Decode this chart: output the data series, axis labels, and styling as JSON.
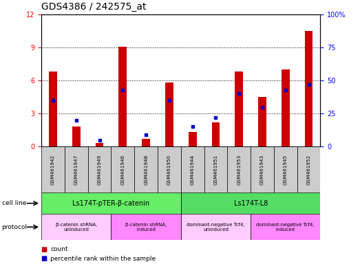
{
  "title": "GDS4386 / 242575_at",
  "samples": [
    "GSM461942",
    "GSM461947",
    "GSM461949",
    "GSM461946",
    "GSM461948",
    "GSM461950",
    "GSM461944",
    "GSM461951",
    "GSM461953",
    "GSM461943",
    "GSM461945",
    "GSM461952"
  ],
  "counts": [
    6.8,
    1.8,
    0.3,
    9.1,
    0.7,
    5.8,
    1.3,
    2.2,
    6.8,
    4.5,
    7.0,
    10.5
  ],
  "percentiles": [
    35,
    20,
    5,
    43,
    9,
    35,
    15,
    22,
    40,
    30,
    43,
    47
  ],
  "ylim_left": [
    0,
    12
  ],
  "ylim_right": [
    0,
    100
  ],
  "yticks_left": [
    0,
    3,
    6,
    9,
    12
  ],
  "yticks_right": [
    0,
    25,
    50,
    75,
    100
  ],
  "ytick_labels_right": [
    "0",
    "25",
    "50",
    "75",
    "100%"
  ],
  "bar_color": "#cc0000",
  "dot_color": "#0000cc",
  "cell_line_labels": [
    {
      "text": "Ls174T-pTER-β-catenin",
      "start": 0,
      "end": 5,
      "color": "#66ee66"
    },
    {
      "text": "Ls174T-L8",
      "start": 6,
      "end": 11,
      "color": "#55dd66"
    }
  ],
  "protocol_labels": [
    {
      "text": "β-catenin shRNA,\nuninduced",
      "start": 0,
      "end": 2,
      "color": "#ffccff"
    },
    {
      "text": "β-catenin shRNA,\ninduced",
      "start": 3,
      "end": 5,
      "color": "#ff88ff"
    },
    {
      "text": "dominant-negative Tcf4,\nuninduced",
      "start": 6,
      "end": 8,
      "color": "#ffccff"
    },
    {
      "text": "dominant-negative Tcf4,\ninduced",
      "start": 9,
      "end": 11,
      "color": "#ff88ff"
    }
  ],
  "tick_bg_color": "#cccccc",
  "bar_width": 0.35,
  "dot_size": 3,
  "label_fontsize": 7,
  "tick_fontsize": 7,
  "title_fontsize": 10
}
